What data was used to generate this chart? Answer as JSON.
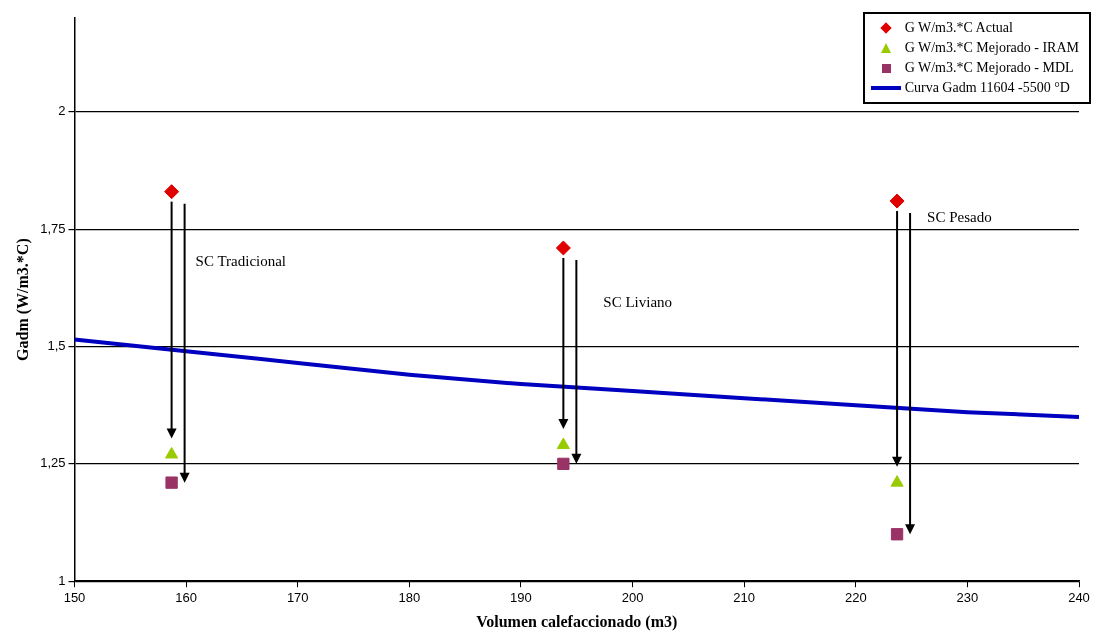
{
  "chart_data": {
    "type": "scatter",
    "xlabel": "Volumen calefaccionado (m3)",
    "ylabel": "Gadm (W/m3.*C)",
    "x": [
      158.7,
      193.8,
      223.7
    ],
    "series": [
      {
        "name": "G W/m3.*C Actual",
        "type": "scatter",
        "marker": "diamond",
        "color": "#e00000",
        "values": [
          1.83,
          1.71,
          1.81
        ]
      },
      {
        "name": "G W/m3.*C Mejorado - IRAM",
        "type": "scatter",
        "marker": "triangle",
        "color": "#99cc00",
        "values": [
          1.27,
          1.29,
          1.21
        ]
      },
      {
        "name": "G W/m3.*C Mejorado - MDL",
        "type": "scatter",
        "marker": "square",
        "color": "#993366",
        "values": [
          1.21,
          1.25,
          1.1
        ]
      },
      {
        "name": "Curva Gadm 11604 -5500 °D",
        "type": "line",
        "marker": "none",
        "line_style": "solid",
        "color": "#0000c0",
        "x": [
          150,
          160,
          170,
          180,
          190,
          200,
          210,
          220,
          230,
          240
        ],
        "values": [
          1.515,
          1.49,
          1.465,
          1.44,
          1.42,
          1.405,
          1.39,
          1.375,
          1.36,
          1.35
        ]
      }
    ],
    "xlim": [
      150,
      240
    ],
    "xticks": [
      150,
      160,
      170,
      180,
      190,
      200,
      210,
      220,
      230,
      240
    ],
    "ylim": [
      1,
      2.2
    ],
    "yticks": [
      1,
      {
        "value": 1.25,
        "label": "1,25"
      },
      {
        "value": 1.5,
        "label": "1,5"
      },
      {
        "value": 1.75,
        "label": "1,75"
      },
      2
    ],
    "grid": "y",
    "legend": "top right",
    "annotations": [
      "SC Tradicional",
      "SC Liviano",
      "SC Pesado"
    ]
  }
}
